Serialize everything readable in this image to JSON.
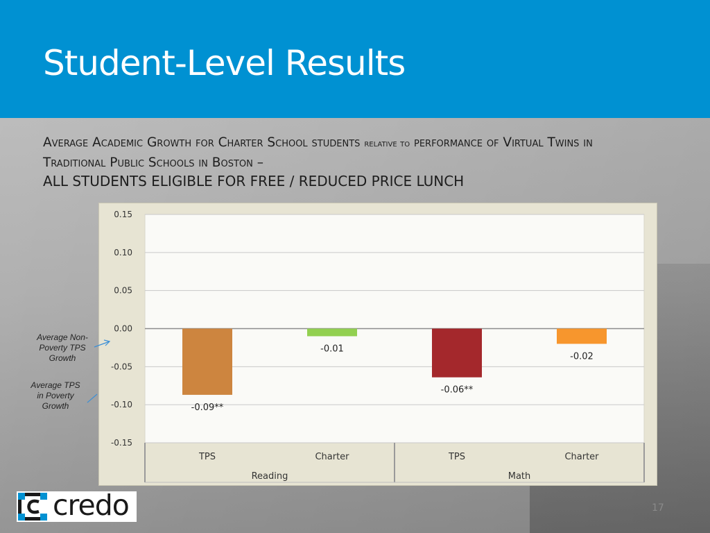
{
  "slide": {
    "title": "Student-Level Results",
    "subtitle_parts": {
      "p1": "Average Academic Growth for Charter School students",
      "p2": "relative to",
      "p3": "performance of Virtual Twins in Traditional Public Schools in Boston –",
      "p4": "ALL STUDENTS ELIGIBLE FOR FREE / REDUCED PRICE LUNCH"
    },
    "side_labels": {
      "non_poverty": "Average Non-Poverty TPS Growth",
      "poverty": "Average TPS in Poverty Growth"
    },
    "logo_text": "credo",
    "page_number": "17",
    "colors": {
      "header": "#0091d2",
      "plot_bg": "#fafaf7",
      "frame_bg": "#e7e4d3",
      "arrow": "#3b8fd6"
    }
  },
  "chart_data": {
    "type": "bar",
    "title": "",
    "xlabel": "",
    "ylabel": "",
    "ylim": [
      -0.15,
      0.15
    ],
    "yticks": [
      "0.15",
      "0.10",
      "0.05",
      "0.00",
      "-0.05",
      "-0.10",
      "-0.15"
    ],
    "ytick_values": [
      0.15,
      0.1,
      0.05,
      0.0,
      -0.05,
      -0.1,
      -0.15
    ],
    "grid": true,
    "groups": [
      {
        "label": "Reading",
        "categories": [
          "TPS",
          "Charter"
        ]
      },
      {
        "label": "Math",
        "categories": [
          "TPS",
          "Charter"
        ]
      }
    ],
    "bars": [
      {
        "group": "Reading",
        "category": "TPS",
        "value": -0.087,
        "label": "-0.09**",
        "color": "#cd853f"
      },
      {
        "group": "Reading",
        "category": "Charter",
        "value": -0.01,
        "label": "-0.01",
        "color": "#92d050"
      },
      {
        "group": "Math",
        "category": "TPS",
        "value": -0.064,
        "label": "-0.06**",
        "color": "#a4282c"
      },
      {
        "group": "Math",
        "category": "Charter",
        "value": -0.02,
        "label": "-0.02",
        "color": "#f7962d"
      }
    ]
  }
}
